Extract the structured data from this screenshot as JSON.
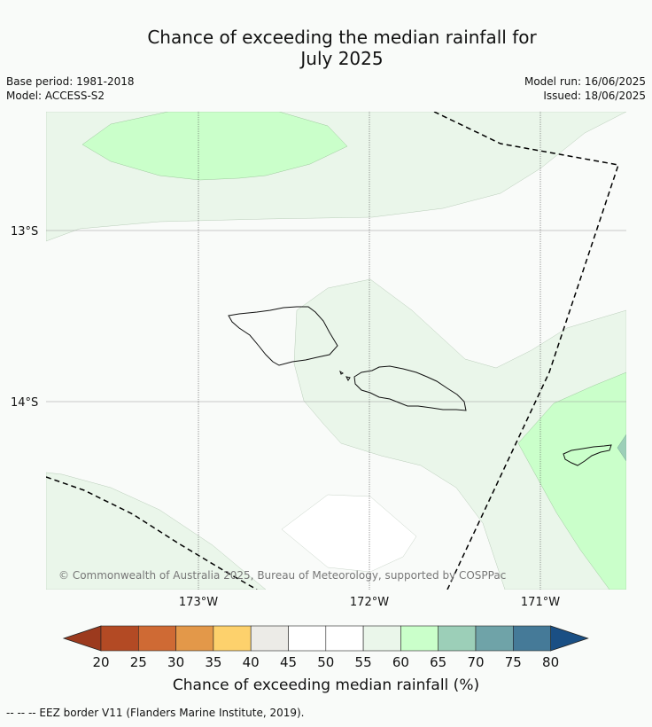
{
  "title": {
    "line1": "Chance of exceeding the median rainfall for",
    "line2": "July 2025"
  },
  "meta": {
    "base_period": "Base period: 1981-2018",
    "model": "Model: ACCESS-S2",
    "model_run": "Model run: 16/06/2025",
    "issued": "Issued: 18/06/2025"
  },
  "map": {
    "lat_labels": [
      "13°S",
      "14°S"
    ],
    "lon_labels": [
      "173°W",
      "172°W",
      "171°W"
    ],
    "copyright": "© Commonwealth of Australia 2025, Bureau of Meteorology, supported by COSPPac"
  },
  "colorbar": {
    "ticks": [
      "20",
      "25",
      "30",
      "35",
      "40",
      "45",
      "50",
      "55",
      "60",
      "65",
      "70",
      "75",
      "80"
    ],
    "colors": [
      "#b34a24",
      "#cf6a34",
      "#e39849",
      "#fdd16c",
      "#ecebe7",
      "#ffffff",
      "#ffffff",
      "#eaf6ea",
      "#caffca",
      "#9ccfb8",
      "#6fa3a8",
      "#457a98"
    ],
    "under_color": "#9c3a1e",
    "over_color": "#1a4f84",
    "label": "Chance of exceeding median rainfall (%)"
  },
  "footnote": "--  --  -- EEZ border V11 (Flanders Marine Institute, 2019)."
}
